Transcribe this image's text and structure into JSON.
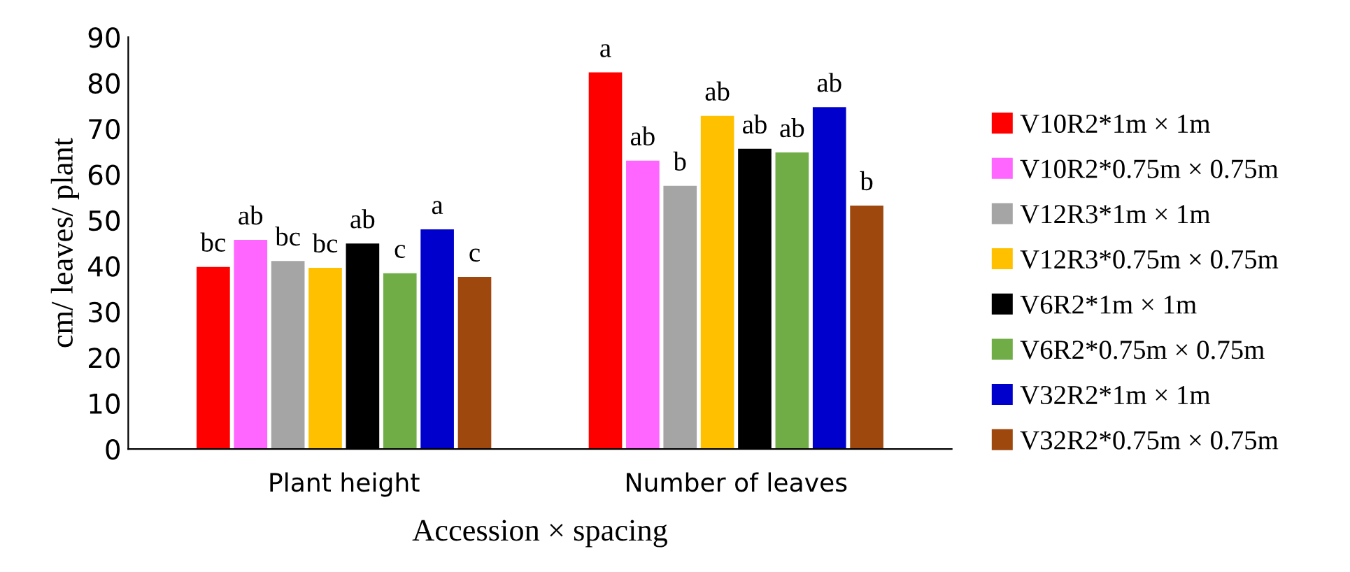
{
  "chart_data": {
    "type": "bar",
    "xlabel": "Accession × spacing",
    "ylabel": "cm/ leaves/ plant",
    "categories": [
      "Plant height",
      "Number of leaves"
    ],
    "ylim": [
      0,
      90
    ],
    "yticks": [
      0,
      10,
      20,
      30,
      40,
      50,
      60,
      70,
      80,
      90
    ],
    "grid": false,
    "legend": "right",
    "series": [
      {
        "name": "V10R2*1m × 1m",
        "color": "#ff0000",
        "values": [
          39.8,
          82.3
        ],
        "value_labels": [
          "bc",
          "a"
        ]
      },
      {
        "name": "V10R2*0.75m × 0.75m",
        "color": "#ff66ff",
        "values": [
          45.7,
          63.0
        ],
        "value_labels": [
          "ab",
          "ab"
        ]
      },
      {
        "name": "V12R3*1m × 1m",
        "color": "#a5a5a5",
        "values": [
          41.1,
          57.5
        ],
        "value_labels": [
          "bc",
          "b"
        ]
      },
      {
        "name": "V12R3*0.75m × 0.75m",
        "color": "#ffc000",
        "values": [
          39.6,
          72.8
        ],
        "value_labels": [
          "bc",
          "ab"
        ]
      },
      {
        "name": "V6R2*1m × 1m",
        "color": "#000000",
        "values": [
          44.9,
          65.6
        ],
        "value_labels": [
          "ab",
          "ab"
        ]
      },
      {
        "name": "V6R2*0.75m × 0.75m",
        "color": "#70ad47",
        "values": [
          38.4,
          64.8
        ],
        "value_labels": [
          "c",
          "ab"
        ]
      },
      {
        "name": "V32R2*1m × 1m",
        "color": "#0000cc",
        "values": [
          48.0,
          74.7
        ],
        "value_labels": [
          "a",
          "ab"
        ]
      },
      {
        "name": "V32R2*0.75m × 0.75m",
        "color": "#9e480e",
        "values": [
          37.6,
          53.2
        ],
        "value_labels": [
          "c",
          "b"
        ]
      }
    ]
  }
}
